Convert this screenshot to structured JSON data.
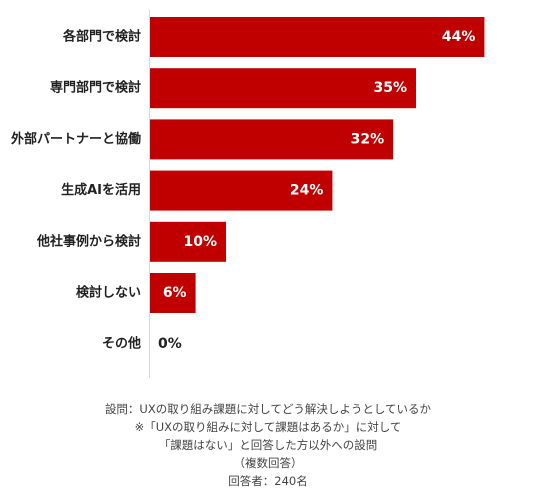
{
  "chart_data": {
    "type": "bar",
    "orientation": "horizontal",
    "categories": [
      "各部門で検討",
      "専門部門で検討",
      "外部パートナーと協働",
      "生成AIを活用",
      "他社事例から検討",
      "検討しない",
      "その他"
    ],
    "values": [
      44,
      35,
      32,
      24,
      10,
      6,
      0
    ],
    "value_labels": [
      "44%",
      "35%",
      "32%",
      "24%",
      "10%",
      "6%",
      "0%"
    ],
    "unit": "%",
    "xlim": [
      0,
      50
    ],
    "grid": false,
    "legend": "none",
    "bar_color": "#c00000",
    "inside_label_color": "#ffffff",
    "outside_label_color": "#222222"
  },
  "notes": {
    "line1": "設問：UXの取り組み課題に対してどう解決しようとしているか",
    "line2": "※「UXの取り組みに対して課題はあるか」に対して",
    "line3": "「課題はない」と回答した方以外への設問",
    "line4": "（複数回答）",
    "line5": "回答者：240名"
  }
}
